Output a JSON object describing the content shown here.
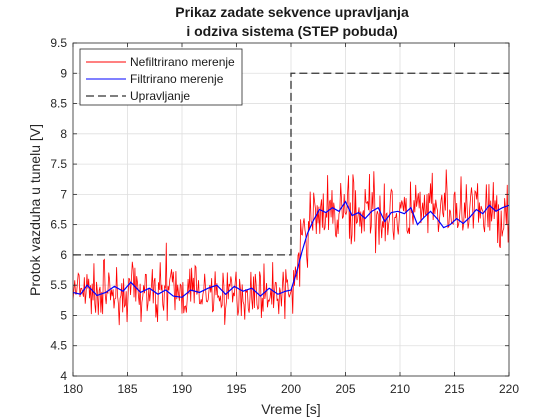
{
  "chart_data": {
    "type": "line",
    "title": [
      "Prikaz zadate sekvence upravljanja",
      "i odziva sistema (STEP pobuda)"
    ],
    "xlabel": "Vreme [s]",
    "ylabel": "Protok vazduha u tunelu [V]",
    "xlim": [
      180,
      220
    ],
    "ylim": [
      4,
      9.5
    ],
    "xticks": [
      180,
      185,
      190,
      195,
      200,
      205,
      210,
      215,
      220
    ],
    "xtick_labels": [
      "180",
      "185",
      "190",
      "195",
      "200",
      "205",
      "210",
      "215",
      "220"
    ],
    "yticks": [
      4,
      4.5,
      5,
      5.5,
      6,
      6.5,
      7,
      7.5,
      8,
      8.5,
      9,
      9.5
    ],
    "ytick_labels": [
      "4",
      "4.5",
      "5",
      "5.5",
      "6",
      "6.5",
      "7",
      "7.5",
      "8",
      "8.5",
      "9",
      "9.5"
    ],
    "grid": true,
    "legend_position": "top-left",
    "series": [
      {
        "name": "Nefiltrirano merenje",
        "color": "#ff0000",
        "style": "solid",
        "noise": {
          "seed": 7,
          "dt": 0.08,
          "amplitude_before": 0.48,
          "amplitude_after": 0.62,
          "baseline_before": 5.38,
          "baseline_after": 6.7,
          "rise_start": 200,
          "rise_end": 202
        }
      },
      {
        "name": "Filtrirano merenje",
        "color": "#0000ff",
        "style": "solid",
        "x": [
          180,
          180.7,
          181.3,
          182.2,
          183.0,
          183.8,
          184.6,
          185.3,
          186.2,
          187.0,
          187.8,
          188.5,
          189.2,
          190.0,
          190.8,
          191.6,
          192.4,
          193.2,
          194.0,
          194.8,
          195.6,
          196.4,
          197.2,
          198.0,
          198.8,
          199.5,
          200.0,
          200.5,
          201.0,
          201.5,
          202.0,
          202.6,
          203.2,
          203.8,
          204.4,
          205.0,
          205.6,
          206.2,
          206.8,
          207.4,
          208.0,
          208.6,
          209.2,
          209.8,
          210.4,
          211.0,
          211.6,
          212.2,
          212.8,
          213.4,
          214.0,
          214.6,
          215.2,
          215.8,
          216.4,
          217.0,
          217.6,
          218.2,
          218.8,
          219.4,
          220.0
        ],
        "y": [
          5.38,
          5.35,
          5.5,
          5.33,
          5.38,
          5.48,
          5.4,
          5.55,
          5.38,
          5.45,
          5.35,
          5.42,
          5.32,
          5.3,
          5.42,
          5.38,
          5.45,
          5.5,
          5.35,
          5.48,
          5.4,
          5.45,
          5.32,
          5.45,
          5.35,
          5.4,
          5.42,
          5.7,
          6.05,
          6.35,
          6.55,
          6.75,
          6.7,
          6.78,
          6.72,
          6.88,
          6.65,
          6.7,
          6.6,
          6.72,
          6.78,
          6.55,
          6.7,
          6.72,
          6.68,
          6.78,
          6.5,
          6.62,
          6.72,
          6.6,
          6.45,
          6.5,
          6.6,
          6.52,
          6.62,
          6.75,
          6.68,
          6.82,
          6.72,
          6.78,
          6.82
        ]
      },
      {
        "name": "Upravljanje",
        "color": "#333333",
        "style": "dashed",
        "x": [
          180,
          200,
          200,
          220
        ],
        "y": [
          6,
          6,
          9,
          9
        ]
      }
    ]
  }
}
